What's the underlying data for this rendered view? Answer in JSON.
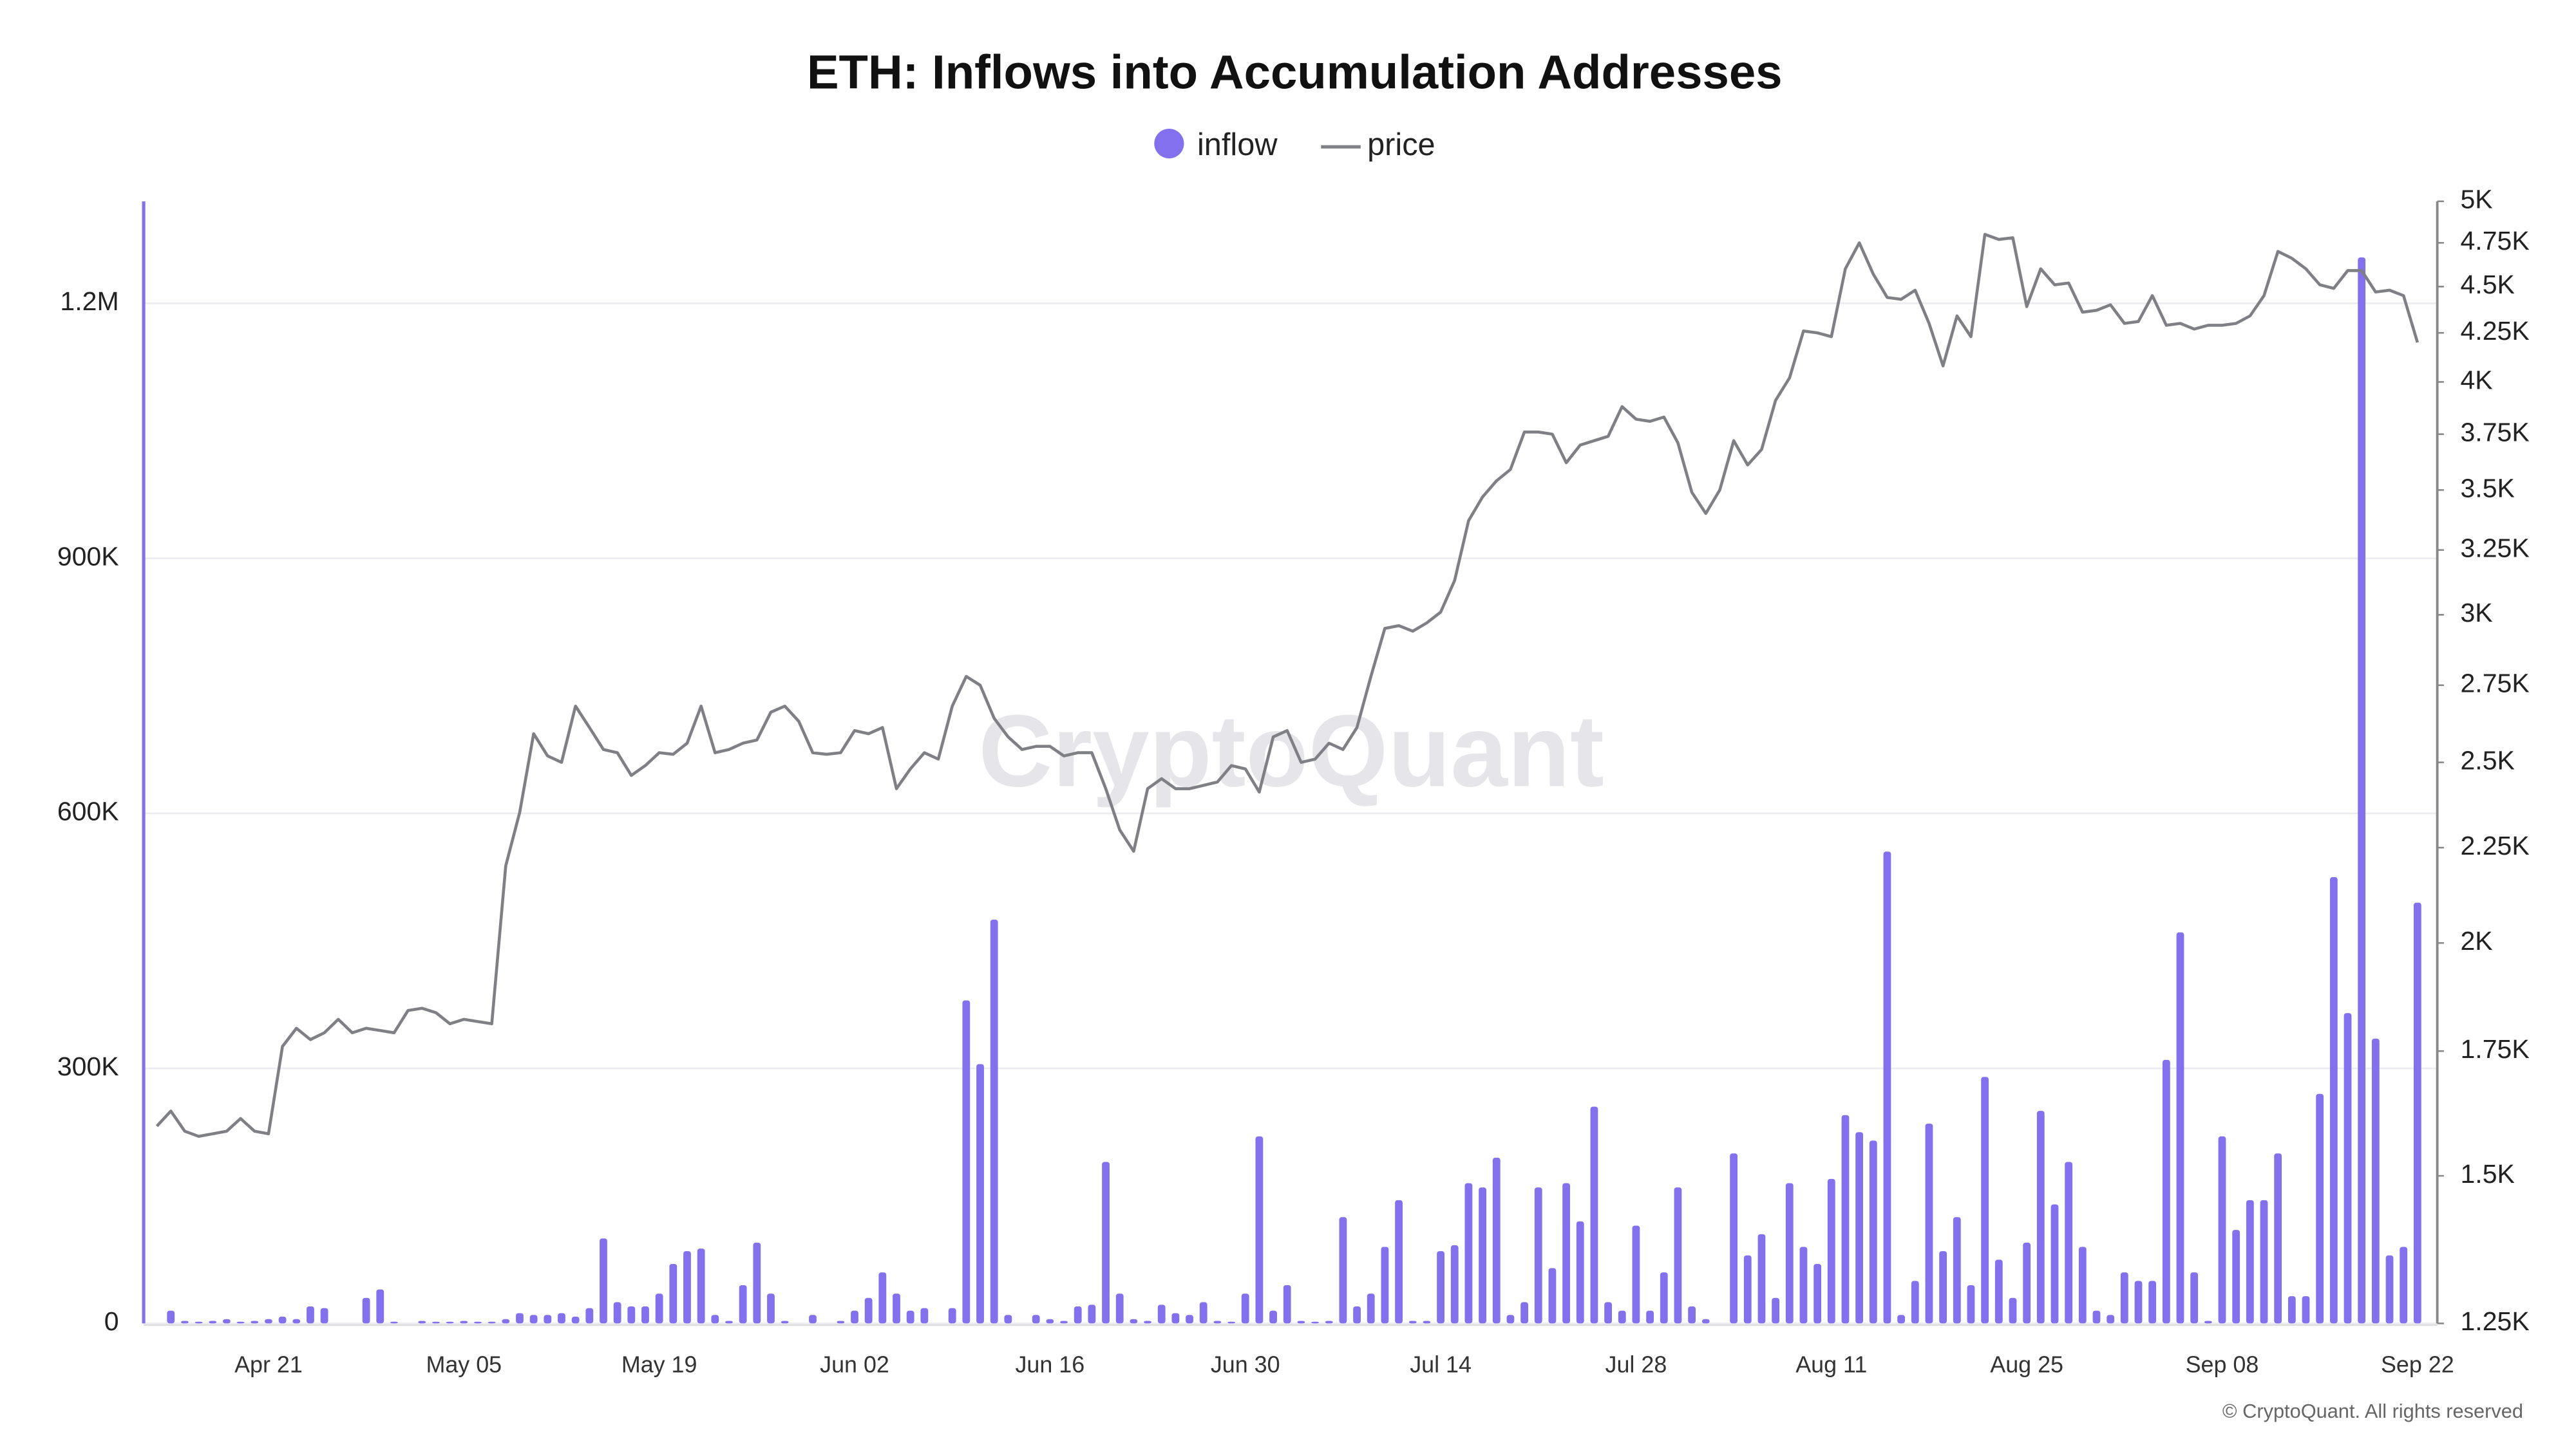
{
  "chart_data": {
    "type": "bar-line",
    "title": "ETH: Inflows into Accumulation Addresses",
    "watermark": "CryptoQuant",
    "credit": "© CryptoQuant. All rights reserved",
    "x": [
      "Apr 13",
      "Apr 14",
      "Apr 15",
      "Apr 16",
      "Apr 17",
      "Apr 18",
      "Apr 19",
      "Apr 20",
      "Apr 21",
      "Apr 22",
      "Apr 23",
      "Apr 24",
      "Apr 25",
      "Apr 26",
      "Apr 27",
      "Apr 28",
      "Apr 29",
      "Apr 30",
      "May 01",
      "May 02",
      "May 03",
      "May 04",
      "May 05",
      "May 06",
      "May 07",
      "May 08",
      "May 09",
      "May 10",
      "May 11",
      "May 12",
      "May 13",
      "May 14",
      "May 15",
      "May 16",
      "May 17",
      "May 18",
      "May 19",
      "May 20",
      "May 21",
      "May 22",
      "May 23",
      "May 24",
      "May 25",
      "May 26",
      "May 27",
      "May 28",
      "May 29",
      "May 30",
      "May 31",
      "Jun 01",
      "Jun 02",
      "Jun 03",
      "Jun 04",
      "Jun 05",
      "Jun 06",
      "Jun 07",
      "Jun 08",
      "Jun 09",
      "Jun 10",
      "Jun 11",
      "Jun 12",
      "Jun 13",
      "Jun 14",
      "Jun 15",
      "Jun 16",
      "Jun 17",
      "Jun 18",
      "Jun 19",
      "Jun 20",
      "Jun 21",
      "Jun 22",
      "Jun 23",
      "Jun 24",
      "Jun 25",
      "Jun 26",
      "Jun 27",
      "Jun 28",
      "Jun 29",
      "Jun 30",
      "Jul 01",
      "Jul 02",
      "Jul 03",
      "Jul 04",
      "Jul 05",
      "Jul 06",
      "Jul 07",
      "Jul 08",
      "Jul 09",
      "Jul 10",
      "Jul 11",
      "Jul 12",
      "Jul 13",
      "Jul 14",
      "Jul 15",
      "Jul 16",
      "Jul 17",
      "Jul 18",
      "Jul 19",
      "Jul 20",
      "Jul 21",
      "Jul 22",
      "Jul 23",
      "Jul 24",
      "Jul 25",
      "Jul 26",
      "Jul 27",
      "Jul 28",
      "Jul 29",
      "Jul 30",
      "Jul 31",
      "Aug 01",
      "Aug 02",
      "Aug 03",
      "Aug 04",
      "Aug 05",
      "Aug 06",
      "Aug 07",
      "Aug 08",
      "Aug 09",
      "Aug 10",
      "Aug 11",
      "Aug 12",
      "Aug 13",
      "Aug 14",
      "Aug 15",
      "Aug 16",
      "Aug 17",
      "Aug 18",
      "Aug 19",
      "Aug 20",
      "Aug 21",
      "Aug 22",
      "Aug 23",
      "Aug 24",
      "Aug 25",
      "Aug 26",
      "Aug 27",
      "Aug 28",
      "Aug 29",
      "Aug 30",
      "Aug 31",
      "Sep 01",
      "Sep 02",
      "Sep 03",
      "Sep 04",
      "Sep 05",
      "Sep 06",
      "Sep 07",
      "Sep 08",
      "Sep 09",
      "Sep 10",
      "Sep 11",
      "Sep 12",
      "Sep 13",
      "Sep 14",
      "Sep 15",
      "Sep 16",
      "Sep 17",
      "Sep 18",
      "Sep 19",
      "Sep 20",
      "Sep 21",
      "Sep 22"
    ],
    "series": [
      {
        "name": "inflow",
        "type": "bar",
        "color": "#8270ee",
        "axis": "y",
        "values": [
          0,
          15000,
          3000,
          2000,
          3000,
          5000,
          2000,
          3000,
          5000,
          8000,
          5000,
          20000,
          18000,
          0,
          0,
          30000,
          40000,
          2000,
          0,
          3000,
          2000,
          2000,
          3000,
          2000,
          2000,
          5000,
          12000,
          10000,
          10000,
          12000,
          8000,
          18000,
          100000,
          25000,
          20000,
          20000,
          35000,
          70000,
          85000,
          88000,
          10000,
          3000,
          45000,
          95000,
          35000,
          3000,
          0,
          10000,
          0,
          3000,
          15000,
          30000,
          60000,
          35000,
          15000,
          18000,
          0,
          18000,
          380000,
          305000,
          475000,
          10000,
          0,
          10000,
          5000,
          3000,
          20000,
          22000,
          190000,
          35000,
          5000,
          3000,
          22000,
          12000,
          10000,
          25000,
          3000,
          2000,
          35000,
          220000,
          15000,
          45000,
          3000,
          2000,
          3000,
          125000,
          20000,
          35000,
          90000,
          145000,
          3000,
          3000,
          85000,
          92000,
          165000,
          160000,
          195000,
          10000,
          25000,
          160000,
          65000,
          165000,
          120000,
          255000,
          25000,
          15000,
          115000,
          15000,
          60000,
          160000,
          20000,
          5000,
          0,
          200000,
          80000,
          105000,
          30000,
          165000,
          90000,
          70000,
          170000,
          245000,
          225000,
          215000,
          555000,
          10000,
          50000,
          235000,
          85000,
          125000,
          45000,
          290000,
          75000,
          30000,
          95000,
          250000,
          140000,
          190000,
          90000,
          15000,
          10000,
          60000,
          50000,
          50000,
          310000,
          460000,
          60000,
          3000,
          220000,
          110000,
          145000,
          145000,
          200000,
          32000,
          32000,
          270000,
          525000,
          365000,
          1254000,
          335000,
          80000,
          90000,
          495000
        ]
      },
      {
        "name": "price",
        "type": "line",
        "color": "#7f7f86",
        "axis": "y2",
        "values": [
          1595,
          1625,
          1585,
          1575,
          1580,
          1585,
          1610,
          1585,
          1580,
          1760,
          1800,
          1775,
          1790,
          1820,
          1790,
          1800,
          1795,
          1790,
          1840,
          1845,
          1835,
          1810,
          1820,
          1815,
          1810,
          2200,
          2350,
          2590,
          2520,
          2500,
          2680,
          2610,
          2540,
          2530,
          2460,
          2490,
          2530,
          2525,
          2560,
          2680,
          2530,
          2540,
          2560,
          2570,
          2660,
          2680,
          2630,
          2530,
          2525,
          2530,
          2600,
          2590,
          2610,
          2420,
          2480,
          2530,
          2510,
          2680,
          2780,
          2750,
          2640,
          2580,
          2540,
          2550,
          2550,
          2520,
          2530,
          2530,
          2420,
          2300,
          2240,
          2420,
          2450,
          2420,
          2420,
          2430,
          2440,
          2490,
          2480,
          2410,
          2580,
          2600,
          2500,
          2510,
          2560,
          2540,
          2610,
          2780,
          2950,
          2960,
          2940,
          2970,
          3010,
          3130,
          3370,
          3470,
          3540,
          3590,
          3760,
          3760,
          3750,
          3620,
          3700,
          3720,
          3740,
          3880,
          3820,
          3810,
          3830,
          3710,
          3490,
          3400,
          3500,
          3720,
          3610,
          3680,
          3910,
          4020,
          4260,
          4250,
          4230,
          4600,
          4750,
          4570,
          4440,
          4430,
          4480,
          4300,
          4080,
          4340,
          4230,
          4800,
          4770,
          4780,
          4390,
          4600,
          4510,
          4520,
          4360,
          4370,
          4400,
          4300,
          4310,
          4450,
          4290,
          4300,
          4270,
          4290,
          4290,
          4300,
          4340,
          4450,
          4700,
          4660,
          4600,
          4510,
          4490,
          4590,
          4590,
          4470,
          4480,
          4450,
          4200
        ]
      }
    ],
    "ylim": [
      0,
      1320000
    ],
    "yticks": [
      0,
      {
        "value": 300000,
        "label": "300K"
      },
      {
        "value": 600000,
        "label": "600K"
      },
      {
        "value": 900000,
        "label": "900K"
      },
      {
        "value": 1200000,
        "label": "1.2M"
      }
    ],
    "y2lim": [
      1250,
      5000
    ],
    "y2scale": "log",
    "y2ticks": [
      {
        "value": 1250,
        "label": "1.25K"
      },
      {
        "value": 1500,
        "label": "1.5K"
      },
      {
        "value": 1750,
        "label": "1.75K"
      },
      {
        "value": 2000,
        "label": "2K"
      },
      {
        "value": 2250,
        "label": "2.25K"
      },
      {
        "value": 2500,
        "label": "2.5K"
      },
      {
        "value": 2750,
        "label": "2.75K"
      },
      {
        "value": 3000,
        "label": "3K"
      },
      {
        "value": 3250,
        "label": "3.25K"
      },
      {
        "value": 3500,
        "label": "3.5K"
      },
      {
        "value": 3750,
        "label": "3.75K"
      },
      {
        "value": 4000,
        "label": "4K"
      },
      {
        "value": 4250,
        "label": "4.25K"
      },
      {
        "value": 4500,
        "label": "4.5K"
      },
      {
        "value": 4750,
        "label": "4.75K"
      },
      {
        "value": 5000,
        "label": "5K"
      }
    ],
    "grid": true,
    "legend": "top"
  }
}
